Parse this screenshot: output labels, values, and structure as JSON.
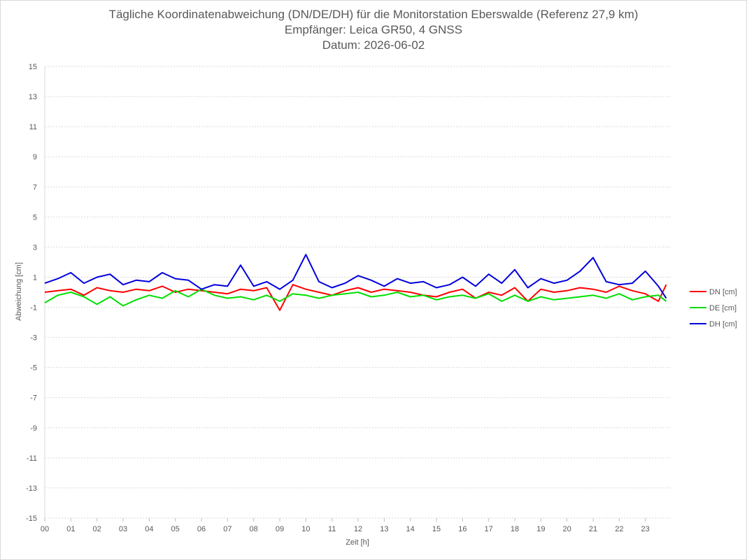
{
  "chart_data": {
    "type": "line",
    "title": "Tägliche Koordinatenabweichung (DN/DE/DH) für die Monitorstation Eberswalde (Referenz 27,9 km)",
    "subtitle": "Empfänger: Leica GR50, 4 GNSS",
    "subtitle2": "Datum: 2026-06-02",
    "xlabel": "Zeit [h]",
    "ylabel": "Abweichung [cm]",
    "xlim": [
      0,
      24
    ],
    "ylim": [
      -15,
      15
    ],
    "x_ticks": [
      "00",
      "01",
      "02",
      "03",
      "04",
      "05",
      "06",
      "07",
      "08",
      "09",
      "10",
      "11",
      "12",
      "13",
      "14",
      "15",
      "16",
      "17",
      "18",
      "19",
      "20",
      "21",
      "22",
      "23"
    ],
    "y_ticks": [
      "15",
      "13",
      "11",
      "9",
      "7",
      "5",
      "3",
      "1",
      "-1",
      "-3",
      "-5",
      "-7",
      "-9",
      "-11",
      "-13",
      "-15"
    ],
    "grid": true,
    "legend_position": "right",
    "x": [
      0,
      0.5,
      1,
      1.5,
      2,
      2.5,
      3,
      3.5,
      4,
      4.5,
      5,
      5.5,
      6,
      6.5,
      7,
      7.5,
      8,
      8.5,
      9,
      9.5,
      10,
      10.5,
      11,
      11.5,
      12,
      12.5,
      13,
      13.5,
      14,
      14.5,
      15,
      15.5,
      16,
      16.5,
      17,
      17.5,
      18,
      18.5,
      19,
      19.5,
      20,
      20.5,
      21,
      21.5,
      22,
      22.5,
      23,
      23.5,
      23.8
    ],
    "series": [
      {
        "name": "DN [cm]",
        "color": "#ff0000",
        "values": [
          0.0,
          0.1,
          0.2,
          -0.2,
          0.3,
          0.1,
          0.0,
          0.2,
          0.1,
          0.4,
          0.0,
          0.2,
          0.1,
          0.0,
          -0.1,
          0.2,
          0.1,
          0.3,
          -1.2,
          0.5,
          0.2,
          0.0,
          -0.2,
          0.1,
          0.3,
          0.0,
          0.2,
          0.1,
          0.0,
          -0.2,
          -0.3,
          0.0,
          0.2,
          -0.4,
          0.0,
          -0.2,
          0.3,
          -0.6,
          0.2,
          0.0,
          0.1,
          0.3,
          0.2,
          0.0,
          0.4,
          0.1,
          -0.1,
          -0.6,
          0.5
        ]
      },
      {
        "name": "DE [cm]",
        "color": "#00e000",
        "values": [
          -0.7,
          -0.2,
          0.0,
          -0.3,
          -0.8,
          -0.3,
          -0.9,
          -0.5,
          -0.2,
          -0.4,
          0.1,
          -0.3,
          0.2,
          -0.2,
          -0.4,
          -0.3,
          -0.5,
          -0.2,
          -0.6,
          -0.1,
          -0.2,
          -0.4,
          -0.2,
          -0.1,
          0.0,
          -0.3,
          -0.2,
          0.0,
          -0.3,
          -0.2,
          -0.5,
          -0.3,
          -0.2,
          -0.4,
          -0.1,
          -0.6,
          -0.2,
          -0.6,
          -0.3,
          -0.5,
          -0.4,
          -0.3,
          -0.2,
          -0.4,
          -0.1,
          -0.5,
          -0.3,
          -0.2,
          -0.6
        ]
      },
      {
        "name": "DH [cm]",
        "color": "#0000dd",
        "values": [
          0.6,
          0.9,
          1.3,
          0.6,
          1.0,
          1.2,
          0.5,
          0.8,
          0.7,
          1.3,
          0.9,
          0.8,
          0.2,
          0.5,
          0.4,
          1.8,
          0.4,
          0.7,
          0.2,
          0.8,
          2.5,
          0.7,
          0.3,
          0.6,
          1.1,
          0.8,
          0.4,
          0.9,
          0.6,
          0.7,
          0.3,
          0.5,
          1.0,
          0.4,
          1.2,
          0.6,
          1.5,
          0.3,
          0.9,
          0.6,
          0.8,
          1.4,
          2.3,
          0.7,
          0.5,
          0.6,
          1.4,
          0.4,
          -0.4
        ]
      }
    ]
  }
}
